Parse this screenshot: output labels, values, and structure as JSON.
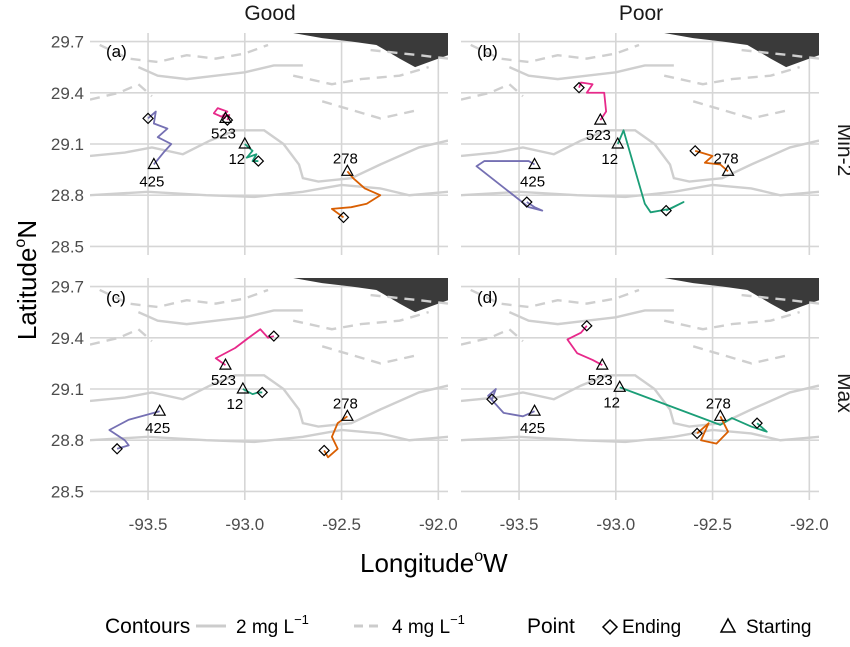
{
  "figure": {
    "xlabel": "Longitude",
    "xlabel_sup": "o",
    "xlabel_tail": "W",
    "ylabel": "Latitude",
    "ylabel_sup": "o",
    "ylabel_tail": "N",
    "columns": [
      "Good",
      "Poor"
    ],
    "rows": [
      "Min-2",
      "Max"
    ],
    "panel_tags": [
      "(a)",
      "(b)",
      "(c)",
      "(d)"
    ],
    "legend": {
      "contours_title": "Contours",
      "contour_solid_label": "2  mg  L",
      "contour_dashed_label": "4  mg  L",
      "contour_unit_sup": "−1",
      "point_title": "Point",
      "ending_label": "Ending",
      "starting_label": "Starting"
    }
  },
  "chart_data": {
    "type": "line",
    "x_ticks": [
      "-93.5",
      "-93.0",
      "-92.5",
      "-92.0"
    ],
    "x_tick_values": [
      -93.5,
      -93.0,
      -92.5,
      -92.0
    ],
    "y_ticks": [
      "28.5",
      "28.8",
      "29.1",
      "29.4",
      "29.7"
    ],
    "y_tick_values": [
      28.5,
      28.8,
      29.1,
      29.4,
      29.7
    ],
    "xlim": [
      -93.8,
      -91.95
    ],
    "ylim": [
      28.45,
      29.75
    ],
    "grid": true,
    "series_colors": {
      "12": "#1b9e77",
      "278": "#d95f02",
      "425": "#7570b3",
      "523": "#e7298a"
    },
    "panels": [
      {
        "tag": "(a)",
        "column": "Good",
        "row": "Min-2",
        "drifters": [
          {
            "label": "425",
            "start": [
              -93.47,
              28.98
            ],
            "end": [
              -93.5,
              29.25
            ],
            "track": [
              [
                -93.47,
                28.98
              ],
              [
                -93.42,
                29.05
              ],
              [
                -93.38,
                29.1
              ],
              [
                -93.45,
                29.14
              ],
              [
                -93.4,
                29.19
              ],
              [
                -93.47,
                29.22
              ],
              [
                -93.46,
                29.29
              ],
              [
                -93.5,
                29.25
              ]
            ]
          },
          {
            "label": "523",
            "start": [
              -93.1,
              29.25
            ],
            "end": [
              -93.09,
              29.24
            ],
            "track": [
              [
                -93.1,
                29.25
              ],
              [
                -93.16,
                29.28
              ],
              [
                -93.14,
                29.31
              ],
              [
                -93.09,
                29.29
              ],
              [
                -93.12,
                29.26
              ],
              [
                -93.08,
                29.27
              ],
              [
                -93.09,
                29.24
              ]
            ]
          },
          {
            "label": "12",
            "start": [
              -93.0,
              29.1
            ],
            "end": [
              -92.93,
              29.0
            ],
            "track": [
              [
                -93.0,
                29.1
              ],
              [
                -92.96,
                29.06
              ],
              [
                -92.99,
                29.02
              ],
              [
                -92.94,
                29.04
              ],
              [
                -92.96,
                29.0
              ],
              [
                -92.93,
                29.0
              ]
            ]
          },
          {
            "label": "278",
            "start": [
              -92.47,
              28.94
            ],
            "end": [
              -92.49,
              28.67
            ],
            "track": [
              [
                -92.47,
                28.94
              ],
              [
                -92.44,
                28.9
              ],
              [
                -92.38,
                28.84
              ],
              [
                -92.3,
                28.8
              ],
              [
                -92.37,
                28.75
              ],
              [
                -92.45,
                28.73
              ],
              [
                -92.55,
                28.72
              ],
              [
                -92.49,
                28.67
              ]
            ]
          }
        ]
      },
      {
        "tag": "(b)",
        "column": "Poor",
        "row": "Min-2",
        "drifters": [
          {
            "label": "425",
            "start": [
              -93.42,
              28.98
            ],
            "end": [
              -93.46,
              28.76
            ],
            "track": [
              [
                -93.42,
                28.98
              ],
              [
                -93.45,
                29.0
              ],
              [
                -93.68,
                29.0
              ],
              [
                -93.72,
                28.97
              ],
              [
                -93.45,
                28.73
              ],
              [
                -93.38,
                28.71
              ],
              [
                -93.42,
                28.73
              ],
              [
                -93.46,
                28.76
              ]
            ]
          },
          {
            "label": "523",
            "start": [
              -93.08,
              29.24
            ],
            "end": [
              -93.19,
              29.43
            ],
            "track": [
              [
                -93.08,
                29.24
              ],
              [
                -93.05,
                29.29
              ],
              [
                -93.06,
                29.4
              ],
              [
                -93.15,
                29.4
              ],
              [
                -93.12,
                29.45
              ],
              [
                -93.18,
                29.46
              ],
              [
                -93.19,
                29.43
              ]
            ]
          },
          {
            "label": "12",
            "start": [
              -92.99,
              29.1
            ],
            "end": [
              -92.74,
              28.71
            ],
            "track": [
              [
                -92.99,
                29.1
              ],
              [
                -92.96,
                29.18
              ],
              [
                -92.85,
                28.75
              ],
              [
                -92.82,
                28.7
              ],
              [
                -92.72,
                28.72
              ],
              [
                -92.65,
                28.76
              ],
              [
                -92.74,
                28.71
              ]
            ]
          },
          {
            "label": "278",
            "start": [
              -92.42,
              28.94
            ],
            "end": [
              -92.59,
              29.06
            ],
            "track": [
              [
                -92.42,
                28.94
              ],
              [
                -92.46,
                28.98
              ],
              [
                -92.54,
                28.99
              ],
              [
                -92.5,
                29.03
              ],
              [
                -92.56,
                29.05
              ],
              [
                -92.59,
                29.06
              ]
            ]
          }
        ]
      },
      {
        "tag": "(c)",
        "column": "Good",
        "row": "Max",
        "drifters": [
          {
            "label": "425",
            "start": [
              -93.44,
              28.97
            ],
            "end": [
              -93.66,
              28.75
            ],
            "track": [
              [
                -93.44,
                28.97
              ],
              [
                -93.6,
                28.92
              ],
              [
                -93.7,
                28.86
              ],
              [
                -93.62,
                28.8
              ],
              [
                -93.6,
                28.77
              ],
              [
                -93.66,
                28.75
              ]
            ]
          },
          {
            "label": "523",
            "start": [
              -93.1,
              29.24
            ],
            "end": [
              -92.85,
              29.41
            ],
            "track": [
              [
                -93.1,
                29.24
              ],
              [
                -93.15,
                29.28
              ],
              [
                -93.05,
                29.34
              ],
              [
                -92.98,
                29.4
              ],
              [
                -92.92,
                29.45
              ],
              [
                -92.88,
                29.4
              ],
              [
                -92.85,
                29.41
              ]
            ]
          },
          {
            "label": "12",
            "start": [
              -93.01,
              29.1
            ],
            "end": [
              -92.91,
              29.08
            ],
            "track": [
              [
                -93.01,
                29.1
              ],
              [
                -92.96,
                29.07
              ],
              [
                -92.93,
                29.08
              ],
              [
                -92.91,
                29.08
              ]
            ]
          },
          {
            "label": "278",
            "start": [
              -92.47,
              28.94
            ],
            "end": [
              -92.59,
              28.74
            ],
            "track": [
              [
                -92.47,
                28.94
              ],
              [
                -92.52,
                28.9
              ],
              [
                -92.55,
                28.82
              ],
              [
                -92.52,
                28.75
              ],
              [
                -92.57,
                28.7
              ],
              [
                -92.59,
                28.74
              ]
            ]
          }
        ]
      },
      {
        "tag": "(d)",
        "column": "Poor",
        "row": "Max",
        "drifters": [
          {
            "label": "425",
            "start": [
              -93.42,
              28.97
            ],
            "end": [
              -93.64,
              29.04
            ],
            "track": [
              [
                -93.42,
                28.97
              ],
              [
                -93.48,
                28.94
              ],
              [
                -93.58,
                28.96
              ],
              [
                -93.66,
                29.06
              ],
              [
                -93.62,
                29.1
              ],
              [
                -93.64,
                29.04
              ]
            ]
          },
          {
            "label": "523",
            "start": [
              -93.07,
              29.24
            ],
            "end": [
              -93.15,
              29.47
            ],
            "track": [
              [
                -93.07,
                29.24
              ],
              [
                -93.12,
                29.27
              ],
              [
                -93.2,
                29.31
              ],
              [
                -93.25,
                29.39
              ],
              [
                -93.18,
                29.43
              ],
              [
                -93.15,
                29.47
              ]
            ]
          },
          {
            "label": "12",
            "start": [
              -92.98,
              29.11
            ],
            "end": [
              -92.27,
              28.9
            ],
            "track": [
              [
                -92.98,
                29.11
              ],
              [
                -92.46,
                28.89
              ],
              [
                -92.4,
                28.93
              ],
              [
                -92.3,
                28.88
              ],
              [
                -92.22,
                28.85
              ],
              [
                -92.27,
                28.9
              ]
            ]
          },
          {
            "label": "278",
            "start": [
              -92.46,
              28.94
            ],
            "end": [
              -92.58,
              28.84
            ],
            "track": [
              [
                -92.46,
                28.94
              ],
              [
                -92.42,
                28.85
              ],
              [
                -92.48,
                28.78
              ],
              [
                -92.56,
                28.8
              ],
              [
                -92.52,
                28.9
              ],
              [
                -92.58,
                28.84
              ]
            ]
          }
        ]
      }
    ],
    "contours": {
      "solid": [
        [
          [
            -93.8,
            29.03
          ],
          [
            -93.62,
            29.05
          ],
          [
            -93.48,
            29.08
          ],
          [
            -93.32,
            29.04
          ],
          [
            -93.18,
            29.12
          ],
          [
            -93.05,
            29.18
          ],
          [
            -92.9,
            29.18
          ],
          [
            -92.8,
            29.1
          ],
          [
            -92.72,
            28.98
          ],
          [
            -92.7,
            28.9
          ],
          [
            -92.62,
            28.88
          ],
          [
            -92.45,
            28.9
          ],
          [
            -92.3,
            28.98
          ],
          [
            -92.1,
            29.08
          ],
          [
            -91.95,
            29.12
          ]
        ],
        [
          [
            -93.8,
            28.8
          ],
          [
            -93.5,
            28.82
          ],
          [
            -93.2,
            28.8
          ],
          [
            -92.95,
            28.79
          ],
          [
            -92.7,
            28.82
          ],
          [
            -92.5,
            28.86
          ],
          [
            -92.3,
            28.84
          ],
          [
            -92.15,
            28.8
          ],
          [
            -91.95,
            28.82
          ]
        ],
        [
          [
            -93.55,
            29.55
          ],
          [
            -93.45,
            29.5
          ],
          [
            -93.3,
            29.48
          ],
          [
            -93.15,
            29.5
          ],
          [
            -93.0,
            29.52
          ],
          [
            -92.85,
            29.56
          ],
          [
            -92.7,
            29.56
          ]
        ]
      ],
      "dashed": [
        [
          [
            -93.75,
            29.68
          ],
          [
            -93.6,
            29.6
          ],
          [
            -93.45,
            29.58
          ],
          [
            -93.3,
            29.62
          ],
          [
            -93.15,
            29.6
          ],
          [
            -93.0,
            29.63
          ],
          [
            -92.88,
            29.68
          ]
        ],
        [
          [
            -93.8,
            29.36
          ],
          [
            -93.65,
            29.4
          ],
          [
            -93.55,
            29.45
          ],
          [
            -93.48,
            29.38
          ]
        ],
        [
          [
            -92.75,
            29.5
          ],
          [
            -92.55,
            29.45
          ],
          [
            -92.4,
            29.48
          ],
          [
            -92.2,
            29.5
          ],
          [
            -92.05,
            29.55
          ]
        ],
        [
          [
            -92.6,
            29.35
          ],
          [
            -92.45,
            29.3
          ],
          [
            -92.3,
            29.25
          ],
          [
            -92.1,
            29.3
          ]
        ],
        [
          [
            -92.35,
            29.65
          ],
          [
            -92.1,
            29.62
          ],
          [
            -91.95,
            29.6
          ]
        ]
      ]
    },
    "coastline": [
      [
        -92.75,
        29.75
      ],
      [
        -92.6,
        29.72
      ],
      [
        -92.45,
        29.7
      ],
      [
        -92.32,
        29.68
      ],
      [
        -92.2,
        29.6
      ],
      [
        -92.12,
        29.55
      ],
      [
        -92.0,
        29.6
      ],
      [
        -91.95,
        29.62
      ],
      [
        -91.95,
        29.75
      ]
    ]
  }
}
